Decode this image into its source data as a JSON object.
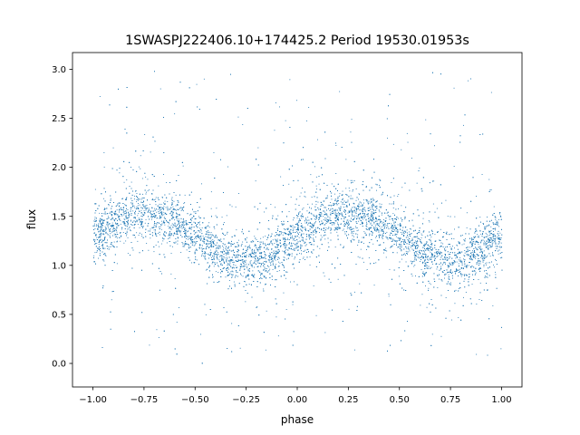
{
  "chart_data": {
    "type": "scatter",
    "title": "1SWASPJ222406.10+174425.2 Period 19530.01953s",
    "xlabel": "phase",
    "ylabel": "flux",
    "xlim": [
      -1.1,
      1.1
    ],
    "ylim": [
      -0.24,
      3.17
    ],
    "xticks": [
      -1.0,
      -0.75,
      -0.5,
      -0.25,
      0.0,
      0.25,
      0.5,
      0.75,
      1.0
    ],
    "xtick_labels": [
      "−1.00",
      "−0.75",
      "−0.50",
      "−0.25",
      "0.00",
      "0.25",
      "0.50",
      "0.75",
      "1.00"
    ],
    "yticks": [
      0.0,
      0.5,
      1.0,
      1.5,
      2.0,
      2.5,
      3.0
    ],
    "ytick_labels": [
      "0.0",
      "0.5",
      "1.0",
      "1.5",
      "2.0",
      "2.5",
      "3.0"
    ],
    "grid": false,
    "marker_color": "#1f77b4",
    "trend": {
      "phase": [
        -1.0,
        -0.875,
        -0.75,
        -0.625,
        -0.5,
        -0.375,
        -0.25,
        -0.125,
        0.0,
        0.125,
        0.25,
        0.375,
        0.5,
        0.625,
        0.75,
        0.875,
        1.0
      ],
      "flux": [
        1.3,
        1.48,
        1.55,
        1.48,
        1.3,
        1.12,
        1.05,
        1.12,
        1.3,
        1.48,
        1.55,
        1.48,
        1.3,
        1.12,
        1.05,
        1.12,
        1.3
      ]
    }
  }
}
